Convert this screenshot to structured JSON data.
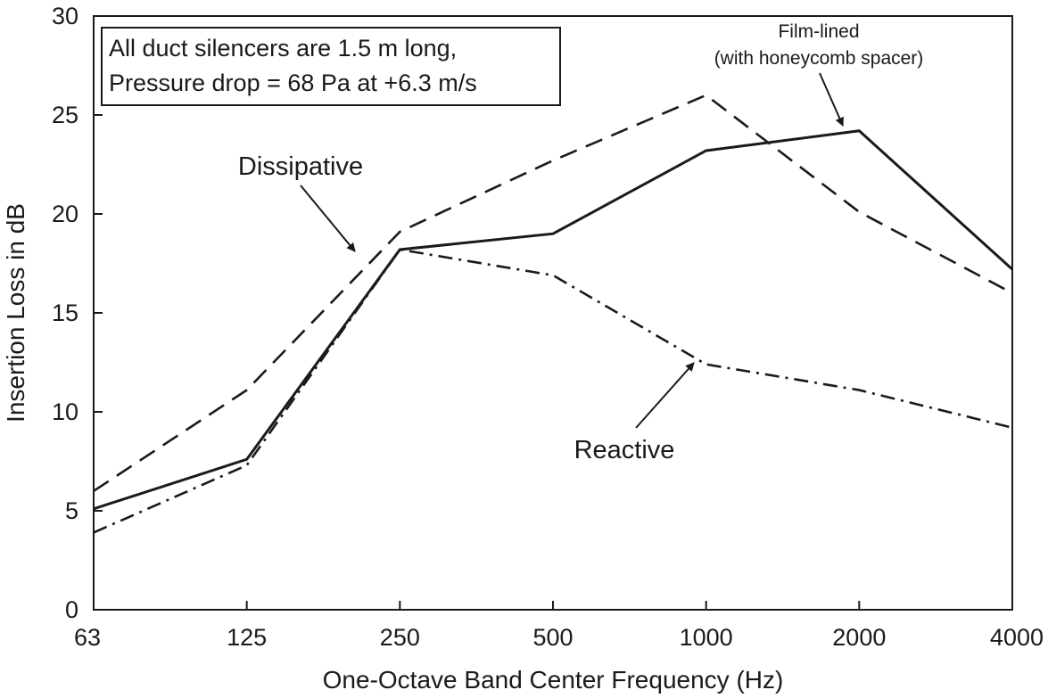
{
  "chart_data": {
    "type": "line",
    "categories": [
      "63",
      "125",
      "250",
      "500",
      "1000",
      "2000",
      "4000"
    ],
    "xlabel": "One-Octave Band Center Frequency (Hz)",
    "ylabel": "Insertion Loss in dB",
    "ylim": [
      0,
      30
    ],
    "yticks": [
      "0",
      "5",
      "10",
      "15",
      "20",
      "25",
      "30"
    ],
    "grid": false,
    "series": [
      {
        "name": "Film-lined",
        "values": [
          5.1,
          7.6,
          18.2,
          19.0,
          23.2,
          24.2,
          17.2
        ],
        "style": "solid",
        "color": "#1a1a1a"
      },
      {
        "name": "Dissipative",
        "values": [
          6.0,
          11.1,
          19.1,
          22.7,
          26.0,
          20.1,
          16.0
        ],
        "style": "dashed",
        "color": "#1a1a1a"
      },
      {
        "name": "Reactive",
        "values": [
          3.9,
          7.3,
          18.2,
          16.9,
          12.4,
          11.1,
          9.2
        ],
        "style": "dashdot",
        "color": "#1a1a1a"
      }
    ],
    "note_lines": [
      "All duct silencers are 1.5 m long,",
      "Pressure drop = 68 Pa at +6.3 m/s"
    ],
    "annotations": {
      "film_lined": [
        "Film-lined",
        "(with honeycomb spacer)"
      ],
      "dissipative": "Dissipative",
      "reactive": "Reactive"
    }
  }
}
